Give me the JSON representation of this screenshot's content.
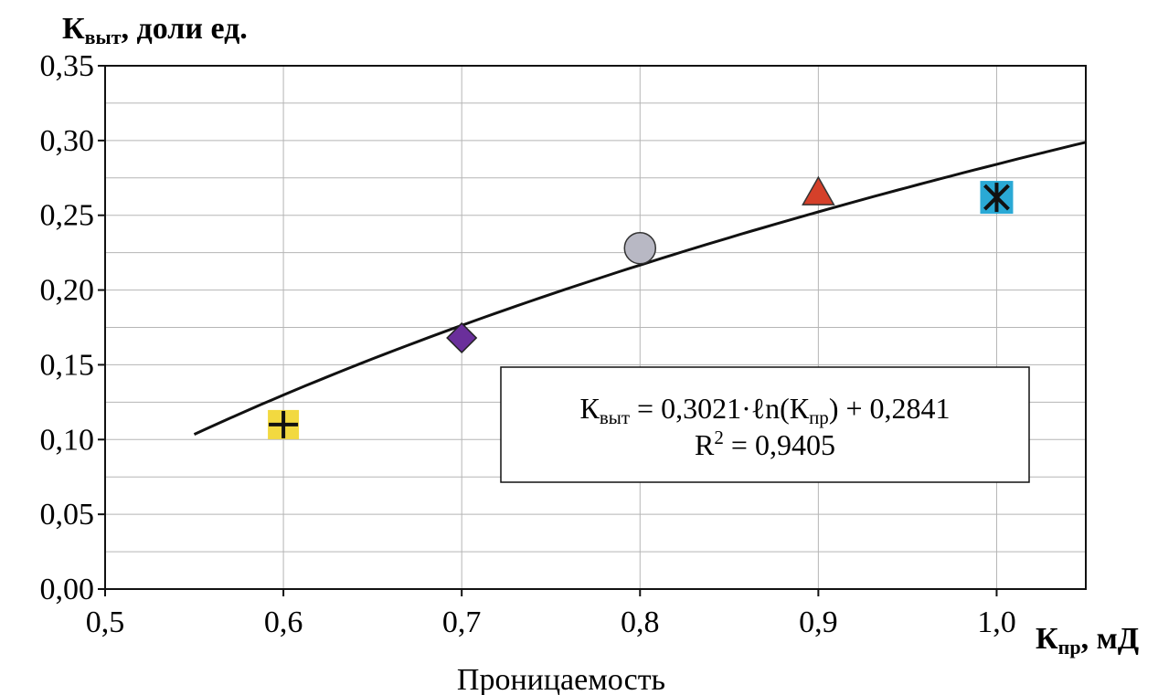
{
  "chart_data": {
    "type": "scatter",
    "ylabel": {
      "main": "К",
      "sub": "выт",
      "rest": ", доли ед."
    },
    "xlabel": {
      "main": "К",
      "sub": "пр",
      "rest": ", мД"
    },
    "caption": "Проницаемость",
    "xlim": [
      0.5,
      1.05
    ],
    "ylim": [
      0.0,
      0.35
    ],
    "x_ticks": [
      "0,5",
      "0,6",
      "0,7",
      "0,8",
      "0,9",
      "1,0"
    ],
    "x_tick_values": [
      0.5,
      0.6,
      0.7,
      0.8,
      0.9,
      1.0
    ],
    "y_ticks": [
      "0,00",
      "0,05",
      "0,10",
      "0,15",
      "0,20",
      "0,25",
      "0,30",
      "0,35"
    ],
    "y_tick_values": [
      0.0,
      0.05,
      0.1,
      0.15,
      0.2,
      0.25,
      0.3,
      0.35
    ],
    "grid": true,
    "points": [
      {
        "x": 0.6,
        "y": 0.11,
        "marker": "cross-square",
        "color": "#f0d21e"
      },
      {
        "x": 0.7,
        "y": 0.168,
        "marker": "diamond",
        "color": "#6a2f9b"
      },
      {
        "x": 0.8,
        "y": 0.228,
        "marker": "circle",
        "color": "#b8b8c4"
      },
      {
        "x": 0.9,
        "y": 0.265,
        "marker": "triangle",
        "color": "#d5402a"
      },
      {
        "x": 1.0,
        "y": 0.262,
        "marker": "asterisk-square",
        "color": "#2aa9d5"
      }
    ],
    "trendline": {
      "type": "logarithmic",
      "a": 0.3021,
      "b": 0.2841,
      "x_range": [
        0.55,
        1.05
      ],
      "r2": 0.9405
    },
    "equation": {
      "lhs_main": "К",
      "lhs_sub": "выт",
      "mid": " = 0,3021·ℓn(К",
      "mid_sub": "пр",
      "rhs": ") + 0,2841",
      "r2_text": "R",
      "r2_sup": "2",
      "r2_value": " = 0,9405"
    }
  }
}
